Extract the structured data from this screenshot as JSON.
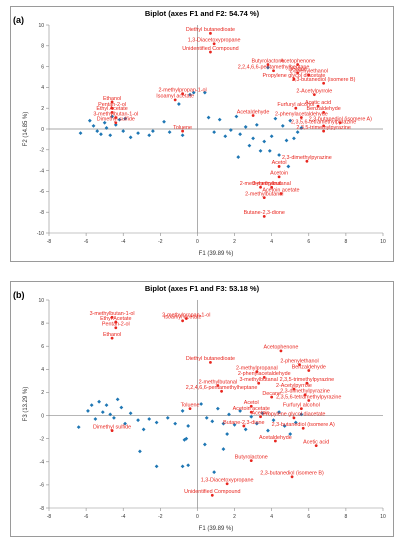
{
  "colors": {
    "observation": "#1f77b4",
    "variable": "#e8261f",
    "axis": "#555555"
  },
  "chart_data": [
    {
      "panel_label": "(a)",
      "type": "scatter",
      "title": "Biplot (axes F1 and F2: 54.74 %)",
      "xlabel": "F1 (39.89 %)",
      "ylabel": "F2 (14.85 %)",
      "xlim": [
        -8,
        10
      ],
      "ylim": [
        -10,
        10
      ],
      "xticks": [
        "-8",
        "-6",
        "-4",
        "-2",
        "0",
        "2",
        "4",
        "6",
        "8",
        "10"
      ],
      "yticks": [
        "10",
        "8",
        "6",
        "4",
        "2",
        "0",
        "-2",
        "-4",
        "-6",
        "-8",
        "-10"
      ],
      "observations": [
        [
          -6.3,
          -0.4
        ],
        [
          -5.8,
          0.8
        ],
        [
          -5.6,
          0.3
        ],
        [
          -5.4,
          -0.2
        ],
        [
          -5.2,
          -0.5
        ],
        [
          -5.0,
          0.6
        ],
        [
          -4.9,
          0.1
        ],
        [
          -4.7,
          -0.6
        ],
        [
          -4.6,
          1.2
        ],
        [
          -4.4,
          0.4
        ],
        [
          -4.2,
          0.9
        ],
        [
          -4.0,
          -0.2
        ],
        [
          -3.9,
          1.0
        ],
        [
          -3.6,
          -0.8
        ],
        [
          -3.2,
          -0.4
        ],
        [
          -2.6,
          -0.6
        ],
        [
          -2.4,
          -0.2
        ],
        [
          -1.8,
          0.7
        ],
        [
          -1.5,
          -0.3
        ],
        [
          -1.0,
          2.4
        ],
        [
          -0.8,
          -0.6
        ],
        [
          -0.4,
          3.3
        ],
        [
          -0.2,
          3.5
        ],
        [
          0.4,
          3.5
        ],
        [
          0.6,
          1.1
        ],
        [
          0.9,
          -0.3
        ],
        [
          1.2,
          0.9
        ],
        [
          1.5,
          -0.7
        ],
        [
          1.8,
          -0.1
        ],
        [
          2.1,
          1.2
        ],
        [
          2.3,
          -0.5
        ],
        [
          2.6,
          0.2
        ],
        [
          2.8,
          -1.6
        ],
        [
          3.0,
          -0.9
        ],
        [
          3.2,
          0.4
        ],
        [
          3.4,
          -2.1
        ],
        [
          3.6,
          -1.2
        ],
        [
          3.8,
          5.9
        ],
        [
          4.0,
          -0.7
        ],
        [
          4.2,
          1.0
        ],
        [
          4.4,
          -2.5
        ],
        [
          4.6,
          0.3
        ],
        [
          4.8,
          -1.1
        ],
        [
          5.0,
          0.8
        ],
        [
          5.2,
          -0.9
        ],
        [
          5.4,
          -0.3
        ],
        [
          5.6,
          0.1
        ],
        [
          4.9,
          -3.6
        ],
        [
          3.9,
          -2.1
        ],
        [
          2.2,
          -2.7
        ]
      ],
      "variables": [
        {
          "label": "Diethyl butanedioate",
          "x": 0.7,
          "y": 9.2
        },
        {
          "label": "1,3-Diacetoxypropane",
          "x": 0.9,
          "y": 8.2
        },
        {
          "label": "Unidentified Compound",
          "x": 0.7,
          "y": 7.4
        },
        {
          "label": "Butyrolactone",
          "x": 3.8,
          "y": 6.2
        },
        {
          "label": "Acetophenone",
          "x": 5.4,
          "y": 6.2
        },
        {
          "label": "2,2,4,6,6-pentamethylheptane",
          "x": 4.1,
          "y": 5.6
        },
        {
          "label": "Decane",
          "x": 5.4,
          "y": 5.4
        },
        {
          "label": "2-phenylethanol",
          "x": 6.0,
          "y": 5.2
        },
        {
          "label": "Propylene glycol diacetate",
          "x": 5.2,
          "y": 4.8
        },
        {
          "label": "2,3-butanediol (isomere B)",
          "x": 6.8,
          "y": 4.4
        },
        {
          "label": "2-Acetylpyrrole",
          "x": 6.3,
          "y": 3.3
        },
        {
          "label": "Furfuryl alcohol",
          "x": 5.3,
          "y": 2.0
        },
        {
          "label": "Acetic acid",
          "x": 6.5,
          "y": 2.2
        },
        {
          "label": "Benzaldehyde",
          "x": 6.8,
          "y": 1.6
        },
        {
          "label": "2-phenylacetaldehyde",
          "x": 5.6,
          "y": 1.1
        },
        {
          "label": "2,3-butanediol (isomere A)",
          "x": 7.7,
          "y": 0.6
        },
        {
          "label": "2,3,5,6-tetramethylpyrazine",
          "x": 6.8,
          "y": 0.3
        },
        {
          "label": "2,3,5-trimethylpyrazine",
          "x": 6.8,
          "y": -0.2
        },
        {
          "label": "Acetaldehyde",
          "x": 3.0,
          "y": 1.3
        },
        {
          "label": "Ethanol",
          "x": -4.6,
          "y": 2.6
        },
        {
          "label": "Pentan-2-ol",
          "x": -4.6,
          "y": 2.0
        },
        {
          "label": "Ethyl Acetate",
          "x": -4.6,
          "y": 1.6
        },
        {
          "label": "3-methylbutan-1-ol",
          "x": -4.4,
          "y": 1.1
        },
        {
          "label": "Dimethyl sulfide",
          "x": -4.4,
          "y": 0.6
        },
        {
          "label": "2-methylpropan-1-ol",
          "x": -0.8,
          "y": 3.4
        },
        {
          "label": "Isoamyl acetate",
          "x": -1.2,
          "y": 2.8
        },
        {
          "label": "Toluene",
          "x": -0.8,
          "y": -0.2
        },
        {
          "label": "2,3-dimethylpyrazine",
          "x": 5.9,
          "y": -3.1
        },
        {
          "label": "Acetol",
          "x": 4.4,
          "y": -3.6
        },
        {
          "label": "Acetoin",
          "x": 4.4,
          "y": -4.6
        },
        {
          "label": "3-methylbutanal",
          "x": 4.0,
          "y": -5.6
        },
        {
          "label": "2-methylpropanal",
          "x": 3.4,
          "y": -5.6
        },
        {
          "label": "Acetoin acetate",
          "x": 4.5,
          "y": -6.2
        },
        {
          "label": "2-methylbutanal",
          "x": 3.6,
          "y": -6.6
        },
        {
          "label": "Butane-2,3-dione",
          "x": 3.6,
          "y": -8.4
        }
      ]
    },
    {
      "panel_label": "(b)",
      "type": "scatter",
      "title": "Biplot (axes F1 and F3: 53.18 %)",
      "xlabel": "F1 (39.89 %)",
      "ylabel": "F3 (13.29 %)",
      "xlim": [
        -8,
        10
      ],
      "ylim": [
        -8,
        10
      ],
      "xticks": [
        "-8",
        "-6",
        "-4",
        "-2",
        "0",
        "2",
        "4",
        "6",
        "8",
        "10"
      ],
      "yticks": [
        "10",
        "8",
        "6",
        "4",
        "2",
        "0",
        "-2",
        "-4",
        "-6",
        "-8"
      ],
      "observations": [
        [
          -6.4,
          -1.0
        ],
        [
          -5.9,
          0.4
        ],
        [
          -5.7,
          0.9
        ],
        [
          -5.5,
          -0.3
        ],
        [
          -5.3,
          1.2
        ],
        [
          -5.1,
          0.3
        ],
        [
          -4.9,
          0.9
        ],
        [
          -4.7,
          0.1
        ],
        [
          -4.5,
          -0.2
        ],
        [
          -4.3,
          1.4
        ],
        [
          -4.1,
          0.7
        ],
        [
          -3.9,
          -0.7
        ],
        [
          -3.6,
          0.2
        ],
        [
          -3.2,
          -0.4
        ],
        [
          -2.9,
          -1.2
        ],
        [
          -2.6,
          -0.3
        ],
        [
          -2.2,
          -0.6
        ],
        [
          -1.6,
          -0.2
        ],
        [
          -1.2,
          -0.7
        ],
        [
          -0.8,
          0.4
        ],
        [
          -0.5,
          -0.9
        ],
        [
          0.2,
          1.0
        ],
        [
          0.5,
          -0.2
        ],
        [
          0.8,
          -0.5
        ],
        [
          1.1,
          0.6
        ],
        [
          1.4,
          -0.7
        ],
        [
          1.7,
          0.1
        ],
        [
          2.0,
          -0.8
        ],
        [
          2.3,
          0.4
        ],
        [
          2.6,
          -1.2
        ],
        [
          2.9,
          -0.1
        ],
        [
          3.2,
          -0.7
        ],
        [
          3.5,
          0.2
        ],
        [
          3.8,
          -1.3
        ],
        [
          4.1,
          -0.4
        ],
        [
          4.4,
          0.3
        ],
        [
          4.7,
          -0.9
        ],
        [
          5.0,
          -1.6
        ],
        [
          5.3,
          -0.6
        ],
        [
          5.6,
          0.1
        ],
        [
          -2.2,
          -4.4
        ],
        [
          -0.8,
          -4.4
        ],
        [
          -0.5,
          -4.3
        ],
        [
          0.4,
          -2.5
        ],
        [
          1.4,
          -2.9
        ],
        [
          -3.1,
          -3.1
        ],
        [
          -0.6,
          -2.0
        ],
        [
          1.6,
          -1.6
        ],
        [
          0.9,
          -4.9
        ],
        [
          -0.7,
          -2.1
        ]
      ],
      "variables": [
        {
          "label": "3-methylbutan-1-ol",
          "x": -4.6,
          "y": 8.5
        },
        {
          "label": "Ethyl Acetate",
          "x": -4.4,
          "y": 8.1
        },
        {
          "label": "Pentan-2-ol",
          "x": -4.4,
          "y": 7.6
        },
        {
          "label": "Ethanol",
          "x": -4.6,
          "y": 6.7
        },
        {
          "label": "2-methylpropan-1-ol",
          "x": -0.6,
          "y": 8.4
        },
        {
          "label": "Isoamyl acetate",
          "x": -0.8,
          "y": 8.2
        },
        {
          "label": "Diethyl butanedioate",
          "x": 0.7,
          "y": 4.6
        },
        {
          "label": "2-methylbutanal",
          "x": 1.1,
          "y": 2.6
        },
        {
          "label": "2,2,4,6,6-pentamethylheptane",
          "x": 1.3,
          "y": 2.1
        },
        {
          "label": "Toluene",
          "x": -0.4,
          "y": 0.6
        },
        {
          "label": "Acetophenone",
          "x": 4.5,
          "y": 5.6
        },
        {
          "label": "2-methylpropanal",
          "x": 3.2,
          "y": 3.8
        },
        {
          "label": "2-phenylethanol",
          "x": 5.5,
          "y": 4.4
        },
        {
          "label": "2-phenylacetaldehyde",
          "x": 3.6,
          "y": 3.3
        },
        {
          "label": "Benzaldehyde",
          "x": 6.0,
          "y": 3.9
        },
        {
          "label": "3-methylbutanal",
          "x": 3.3,
          "y": 2.8
        },
        {
          "label": "2,3,5-trimethylpyrazine",
          "x": 5.9,
          "y": 2.8
        },
        {
          "label": "2-Acetylpyrrole",
          "x": 5.2,
          "y": 2.3
        },
        {
          "label": "2,3-dimethylpyrazine",
          "x": 5.8,
          "y": 1.8
        },
        {
          "label": "Decane",
          "x": 4.0,
          "y": 1.6
        },
        {
          "label": "2,3,5,6-tetramethylpyrazine",
          "x": 6.0,
          "y": 1.3
        },
        {
          "label": "Acetol",
          "x": 2.9,
          "y": 0.8
        },
        {
          "label": "Acetoin acetate",
          "x": 2.9,
          "y": 0.3
        },
        {
          "label": "Furfuryl alcohol",
          "x": 5.6,
          "y": 0.6
        },
        {
          "label": "Acetoin",
          "x": 3.4,
          "y": -0.1
        },
        {
          "label": "Propylene glycol diacetate",
          "x": 5.2,
          "y": -0.2
        },
        {
          "label": "Butane-2,3-dione",
          "x": 2.5,
          "y": -0.9
        },
        {
          "label": "2,3-butanediol (isomere A)",
          "x": 5.7,
          "y": -1.1
        },
        {
          "label": "Acetaldehyde",
          "x": 4.2,
          "y": -2.2
        },
        {
          "label": "Acetic acid",
          "x": 6.4,
          "y": -2.6
        },
        {
          "label": "Butyrolactone",
          "x": 2.9,
          "y": -3.9
        },
        {
          "label": "2,3-butanediol (isomere B)",
          "x": 5.1,
          "y": -5.3
        },
        {
          "label": "1,3-Diacetoxypropane",
          "x": 1.6,
          "y": -5.9
        },
        {
          "label": "Unidentified Compound",
          "x": 0.8,
          "y": -6.9
        },
        {
          "label": "Dimethyl sulfide",
          "x": -4.6,
          "y": -1.3
        }
      ]
    }
  ]
}
